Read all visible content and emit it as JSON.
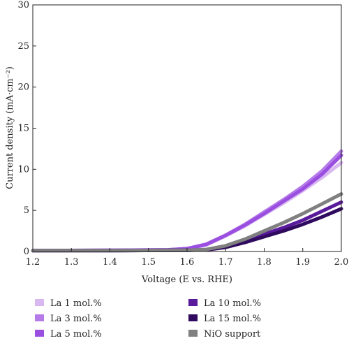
{
  "chart_data": {
    "type": "line",
    "xlabel": "Voltage (E vs. RHE)",
    "ylabel": "Current density (mA·cm⁻²)",
    "xlim": [
      1.2,
      2.0
    ],
    "ylim": [
      0,
      30
    ],
    "xticks": [
      1.2,
      1.3,
      1.4,
      1.5,
      1.6,
      1.7,
      1.8,
      1.9,
      2.0
    ],
    "xtick_labels": [
      "1.2",
      "1.3",
      "1.4",
      "1.5",
      "1.6",
      "1.7",
      "1.8",
      "1.9",
      "2.0"
    ],
    "yticks": [
      0,
      5,
      10,
      15,
      20,
      25,
      30
    ],
    "ytick_labels": [
      "0",
      "5",
      "10",
      "15",
      "20",
      "25",
      "30"
    ],
    "grid": false,
    "legend_position": "bottom",
    "series": [
      {
        "name": "La 1 mol.%",
        "color": "#d9b8f2",
        "points": [
          [
            1.2,
            0.1
          ],
          [
            1.4,
            0.15
          ],
          [
            1.55,
            0.2
          ],
          [
            1.6,
            0.3
          ],
          [
            1.65,
            0.8
          ],
          [
            1.7,
            1.9
          ],
          [
            1.75,
            3.1
          ],
          [
            1.8,
            4.5
          ],
          [
            1.85,
            5.9
          ],
          [
            1.9,
            7.4
          ],
          [
            1.95,
            9.0
          ],
          [
            2.0,
            10.8
          ]
        ]
      },
      {
        "name": "La 3 mol.%",
        "color": "#b57be8",
        "points": [
          [
            1.2,
            0.1
          ],
          [
            1.4,
            0.15
          ],
          [
            1.55,
            0.2
          ],
          [
            1.6,
            0.35
          ],
          [
            1.65,
            0.9
          ],
          [
            1.7,
            2.0
          ],
          [
            1.75,
            3.3
          ],
          [
            1.8,
            4.8
          ],
          [
            1.85,
            6.3
          ],
          [
            1.9,
            7.9
          ],
          [
            1.95,
            9.8
          ],
          [
            2.0,
            12.2
          ]
        ]
      },
      {
        "name": "La 5 mol.%",
        "color": "#9a4fe0",
        "points": [
          [
            1.2,
            0.1
          ],
          [
            1.4,
            0.15
          ],
          [
            1.55,
            0.2
          ],
          [
            1.6,
            0.35
          ],
          [
            1.65,
            0.85
          ],
          [
            1.7,
            1.95
          ],
          [
            1.75,
            3.2
          ],
          [
            1.8,
            4.6
          ],
          [
            1.85,
            6.1
          ],
          [
            1.9,
            7.6
          ],
          [
            1.95,
            9.4
          ],
          [
            2.0,
            11.7
          ]
        ]
      },
      {
        "name": "La 10 mol.%",
        "color": "#5a1a9c",
        "points": [
          [
            1.2,
            0.1
          ],
          [
            1.4,
            0.1
          ],
          [
            1.6,
            0.15
          ],
          [
            1.65,
            0.2
          ],
          [
            1.7,
            0.6
          ],
          [
            1.75,
            1.3
          ],
          [
            1.8,
            2.1
          ],
          [
            1.85,
            2.9
          ],
          [
            1.9,
            3.8
          ],
          [
            1.95,
            4.9
          ],
          [
            2.0,
            6.0
          ]
        ]
      },
      {
        "name": "La 15 mol.%",
        "color": "#2f0a5e",
        "points": [
          [
            1.2,
            0.1
          ],
          [
            1.4,
            0.1
          ],
          [
            1.6,
            0.15
          ],
          [
            1.65,
            0.2
          ],
          [
            1.7,
            0.5
          ],
          [
            1.75,
            1.1
          ],
          [
            1.8,
            1.8
          ],
          [
            1.85,
            2.5
          ],
          [
            1.9,
            3.3
          ],
          [
            1.95,
            4.2
          ],
          [
            2.0,
            5.2
          ]
        ]
      },
      {
        "name": "NiO support",
        "color": "#808080",
        "points": [
          [
            1.2,
            0.1
          ],
          [
            1.4,
            0.1
          ],
          [
            1.6,
            0.15
          ],
          [
            1.65,
            0.25
          ],
          [
            1.7,
            0.7
          ],
          [
            1.75,
            1.5
          ],
          [
            1.8,
            2.5
          ],
          [
            1.85,
            3.5
          ],
          [
            1.9,
            4.6
          ],
          [
            1.95,
            5.8
          ],
          [
            2.0,
            7.0
          ]
        ]
      }
    ]
  }
}
